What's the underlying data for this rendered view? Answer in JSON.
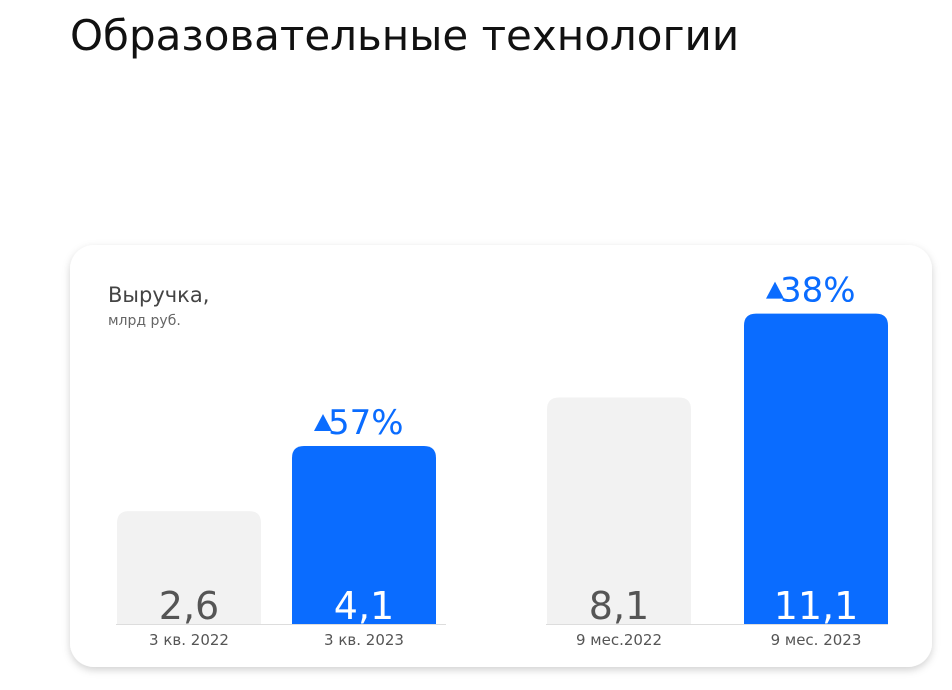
{
  "title": "Образовательные технологии",
  "panel": {
    "label": "Выручка,",
    "unit": "млрд руб."
  },
  "chart_data": [
    {
      "type": "bar",
      "categories": [
        "3 кв. 2022",
        "3 кв. 2023"
      ],
      "values": [
        2.6,
        4.1
      ],
      "value_labels": [
        "2,6",
        "4,1"
      ],
      "colors": [
        "#f2f2f2",
        "#0a6cff"
      ],
      "annotation": "57%",
      "ylim": [
        0,
        7.6
      ]
    },
    {
      "type": "bar",
      "categories": [
        "9 мес.2022",
        "9 мес. 2023"
      ],
      "values": [
        8.1,
        11.1
      ],
      "value_labels": [
        "8,1",
        "11,1"
      ],
      "colors": [
        "#f2f2f2",
        "#0a6cff"
      ],
      "annotation": "38%",
      "ylim": [
        0,
        11.8
      ]
    }
  ]
}
